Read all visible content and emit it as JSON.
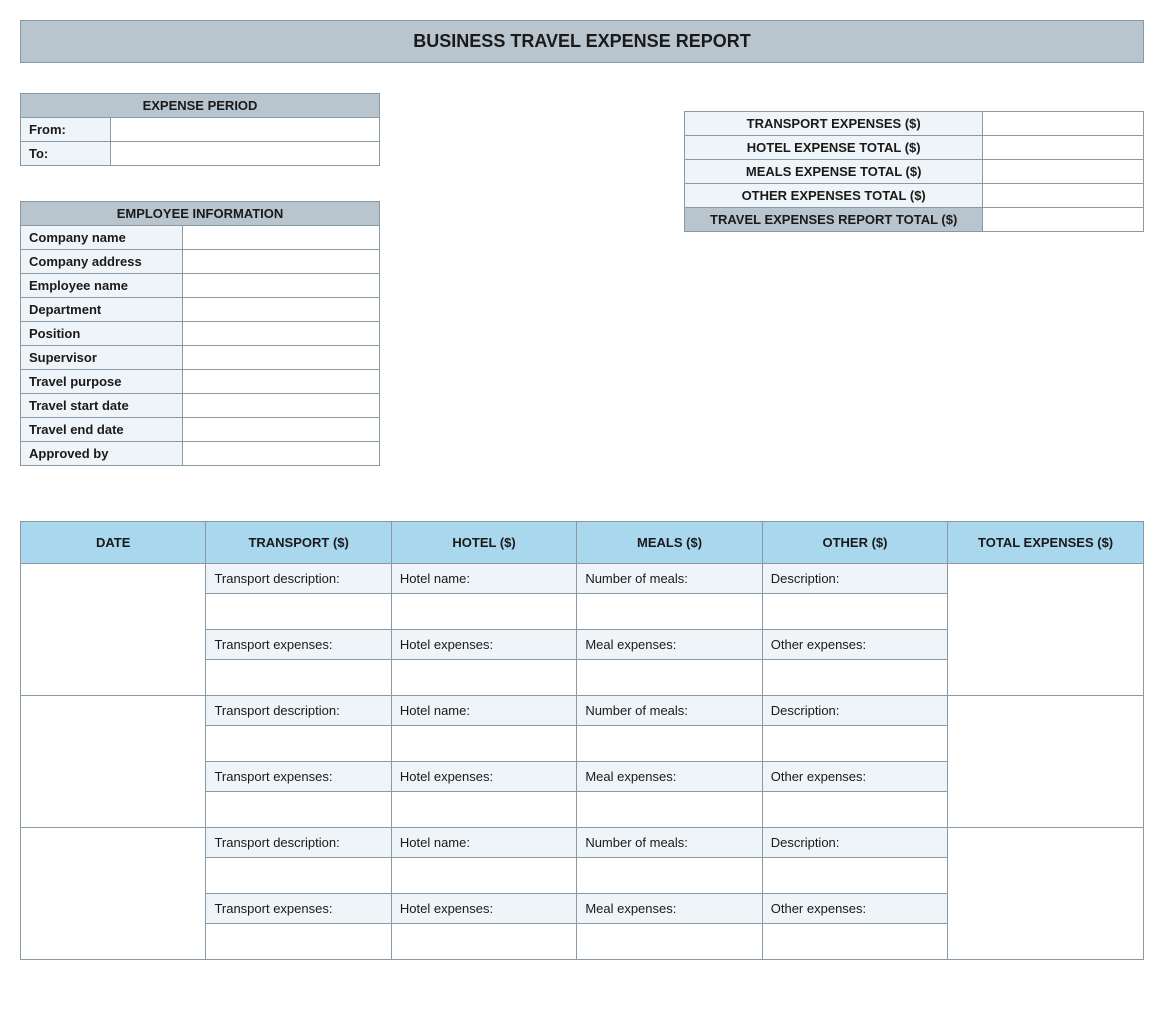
{
  "title": "BUSINESS TRAVEL EXPENSE REPORT",
  "period": {
    "header": "EXPENSE PERIOD",
    "from_label": "From:",
    "from_value": "",
    "to_label": "To:",
    "to_value": ""
  },
  "summary": {
    "rows": [
      {
        "label": "TRANSPORT EXPENSES ($)",
        "value": ""
      },
      {
        "label": "HOTEL EXPENSE TOTAL ($)",
        "value": ""
      },
      {
        "label": "MEALS EXPENSE TOTAL ($)",
        "value": ""
      },
      {
        "label": "OTHER EXPENSES TOTAL ($)",
        "value": ""
      }
    ],
    "total_label": "TRAVEL EXPENSES REPORT TOTAL ($)",
    "total_value": ""
  },
  "employee": {
    "header": "EMPLOYEE INFORMATION",
    "fields": [
      {
        "label": "Company name",
        "value": ""
      },
      {
        "label": "Company address",
        "value": ""
      },
      {
        "label": "Employee name",
        "value": ""
      },
      {
        "label": "Department",
        "value": ""
      },
      {
        "label": "Position",
        "value": ""
      },
      {
        "label": "Supervisor",
        "value": ""
      },
      {
        "label": "Travel purpose",
        "value": ""
      },
      {
        "label": "Travel start date",
        "value": ""
      },
      {
        "label": "Travel end date",
        "value": ""
      },
      {
        "label": "Approved by",
        "value": ""
      }
    ]
  },
  "expense_table": {
    "columns": {
      "date": "DATE",
      "transport": "TRANSPORT ($)",
      "hotel": "HOTEL ($)",
      "meals": "MEALS ($)",
      "other": "OTHER ($)",
      "total": "TOTAL EXPENSES ($)"
    },
    "row_labels": {
      "transport_desc": "Transport description:",
      "hotel_name": "Hotel name:",
      "num_meals": "Number of meals:",
      "other_desc": "Description:",
      "transport_exp": "Transport expenses:",
      "hotel_exp": "Hotel expenses:",
      "meal_exp": "Meal expenses:",
      "other_exp": "Other expenses:"
    },
    "rows": [
      {
        "date": "",
        "transport_desc": "",
        "hotel_name": "",
        "num_meals": "",
        "other_desc": "",
        "transport_exp": "",
        "hotel_exp": "",
        "meal_exp": "",
        "other_exp": "",
        "total": ""
      },
      {
        "date": "",
        "transport_desc": "",
        "hotel_name": "",
        "num_meals": "",
        "other_desc": "",
        "transport_exp": "",
        "hotel_exp": "",
        "meal_exp": "",
        "other_exp": "",
        "total": ""
      },
      {
        "date": "",
        "transport_desc": "",
        "hotel_name": "",
        "num_meals": "",
        "other_desc": "",
        "transport_exp": "",
        "hotel_exp": "",
        "meal_exp": "",
        "other_exp": "",
        "total": ""
      }
    ]
  },
  "colors": {
    "header_bg": "#b8c5ce",
    "light_bg": "#eef4f7",
    "exp_header_bg": "#a9d7ee",
    "border": "#8a9aa5",
    "white": "#ffffff",
    "text": "#1a1a1a"
  }
}
